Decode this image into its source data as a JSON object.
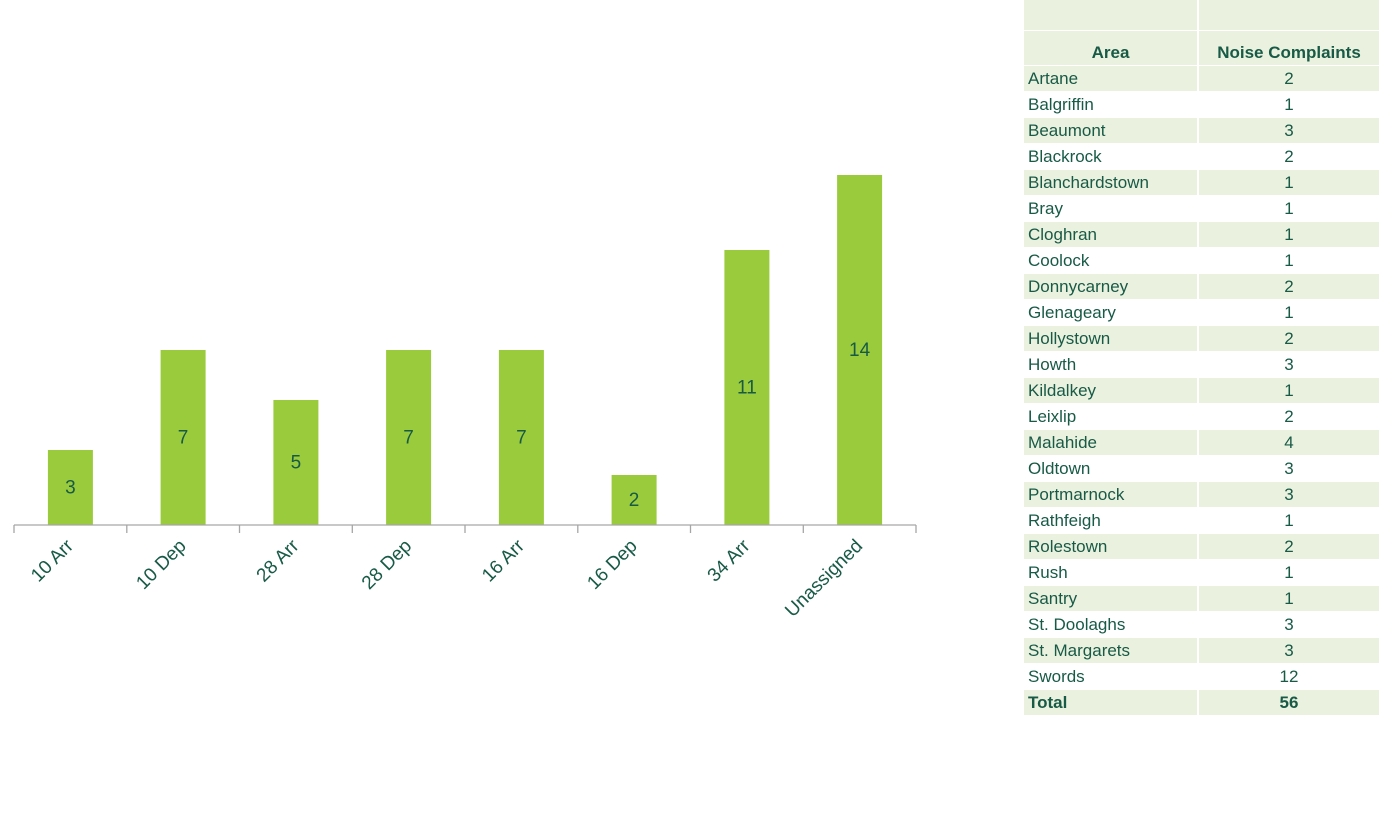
{
  "chart_data": {
    "type": "bar",
    "categories": [
      "10 Arr",
      "10 Dep",
      "28 Arr",
      "28 Dep",
      "16 Arr",
      "16 Dep",
      "34 Arr",
      "Unassigned"
    ],
    "values": [
      3,
      7,
      5,
      7,
      7,
      2,
      11,
      14
    ],
    "ylim": [
      0,
      16
    ],
    "grid": false,
    "legend": "none",
    "colors": {
      "bar": "#9acb3c",
      "axis": "#a6a6a6",
      "text": "#175a46"
    }
  },
  "table": {
    "headers": [
      "Area",
      "Noise Complaints"
    ],
    "rows": [
      [
        "Artane",
        "2"
      ],
      [
        "Balgriffin",
        "1"
      ],
      [
        "Beaumont",
        "3"
      ],
      [
        "Blackrock",
        "2"
      ],
      [
        "Blanchardstown",
        "1"
      ],
      [
        "Bray",
        "1"
      ],
      [
        "Cloghran",
        "1"
      ],
      [
        "Coolock",
        "1"
      ],
      [
        "Donnycarney",
        "2"
      ],
      [
        "Glenageary",
        "1"
      ],
      [
        "Hollystown",
        "2"
      ],
      [
        "Howth",
        "3"
      ],
      [
        "Kildalkey",
        "1"
      ],
      [
        "Leixlip",
        "2"
      ],
      [
        "Malahide",
        "4"
      ],
      [
        "Oldtown",
        "3"
      ],
      [
        "Portmarnock",
        "3"
      ],
      [
        "Rathfeigh",
        "1"
      ],
      [
        "Rolestown",
        "2"
      ],
      [
        "Rush",
        "1"
      ],
      [
        "Santry",
        "1"
      ],
      [
        "St. Doolaghs",
        "3"
      ],
      [
        "St. Margarets",
        "3"
      ],
      [
        "Swords",
        "12"
      ]
    ],
    "total_label": "Total",
    "total_value": "56"
  }
}
